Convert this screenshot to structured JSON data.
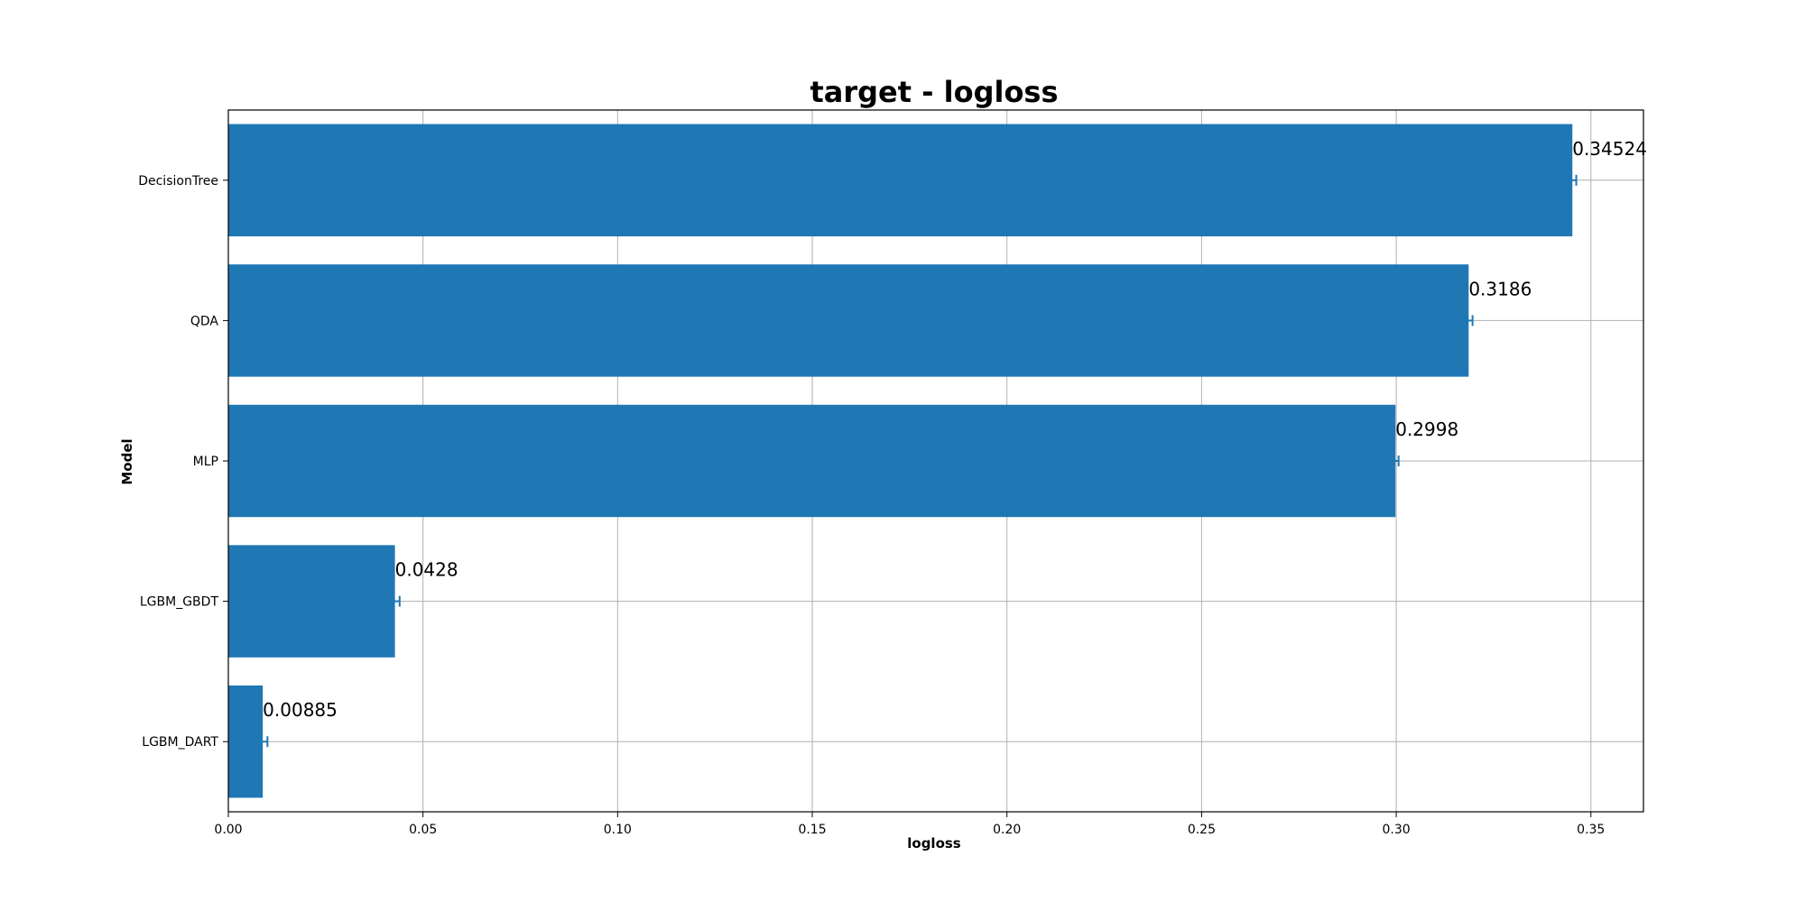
{
  "chart_data": {
    "type": "bar",
    "orientation": "horizontal",
    "title": "target - logloss",
    "xlabel": "logloss",
    "ylabel": "Model",
    "categories": [
      "DecisionTree",
      "QDA",
      "MLP",
      "LGBM_GBDT",
      "LGBM_DART"
    ],
    "values": [
      0.34524,
      0.3186,
      0.2998,
      0.0428,
      0.00885
    ],
    "value_labels": [
      "0.34524",
      "0.3186",
      "0.2998",
      "0.0428",
      "0.00885"
    ],
    "error": [
      0.001,
      0.001,
      0.0008,
      0.0012,
      0.0012
    ],
    "xlim": [
      0,
      0.3635
    ],
    "xticks": [
      0.0,
      0.05,
      0.1,
      0.15,
      0.2,
      0.25,
      0.3,
      0.35
    ],
    "xtick_labels": [
      "0.00",
      "0.05",
      "0.10",
      "0.15",
      "0.20",
      "0.25",
      "0.30",
      "0.35"
    ],
    "grid": true,
    "bar_color": "#1f77b4",
    "error_color": "#1f77b4"
  }
}
